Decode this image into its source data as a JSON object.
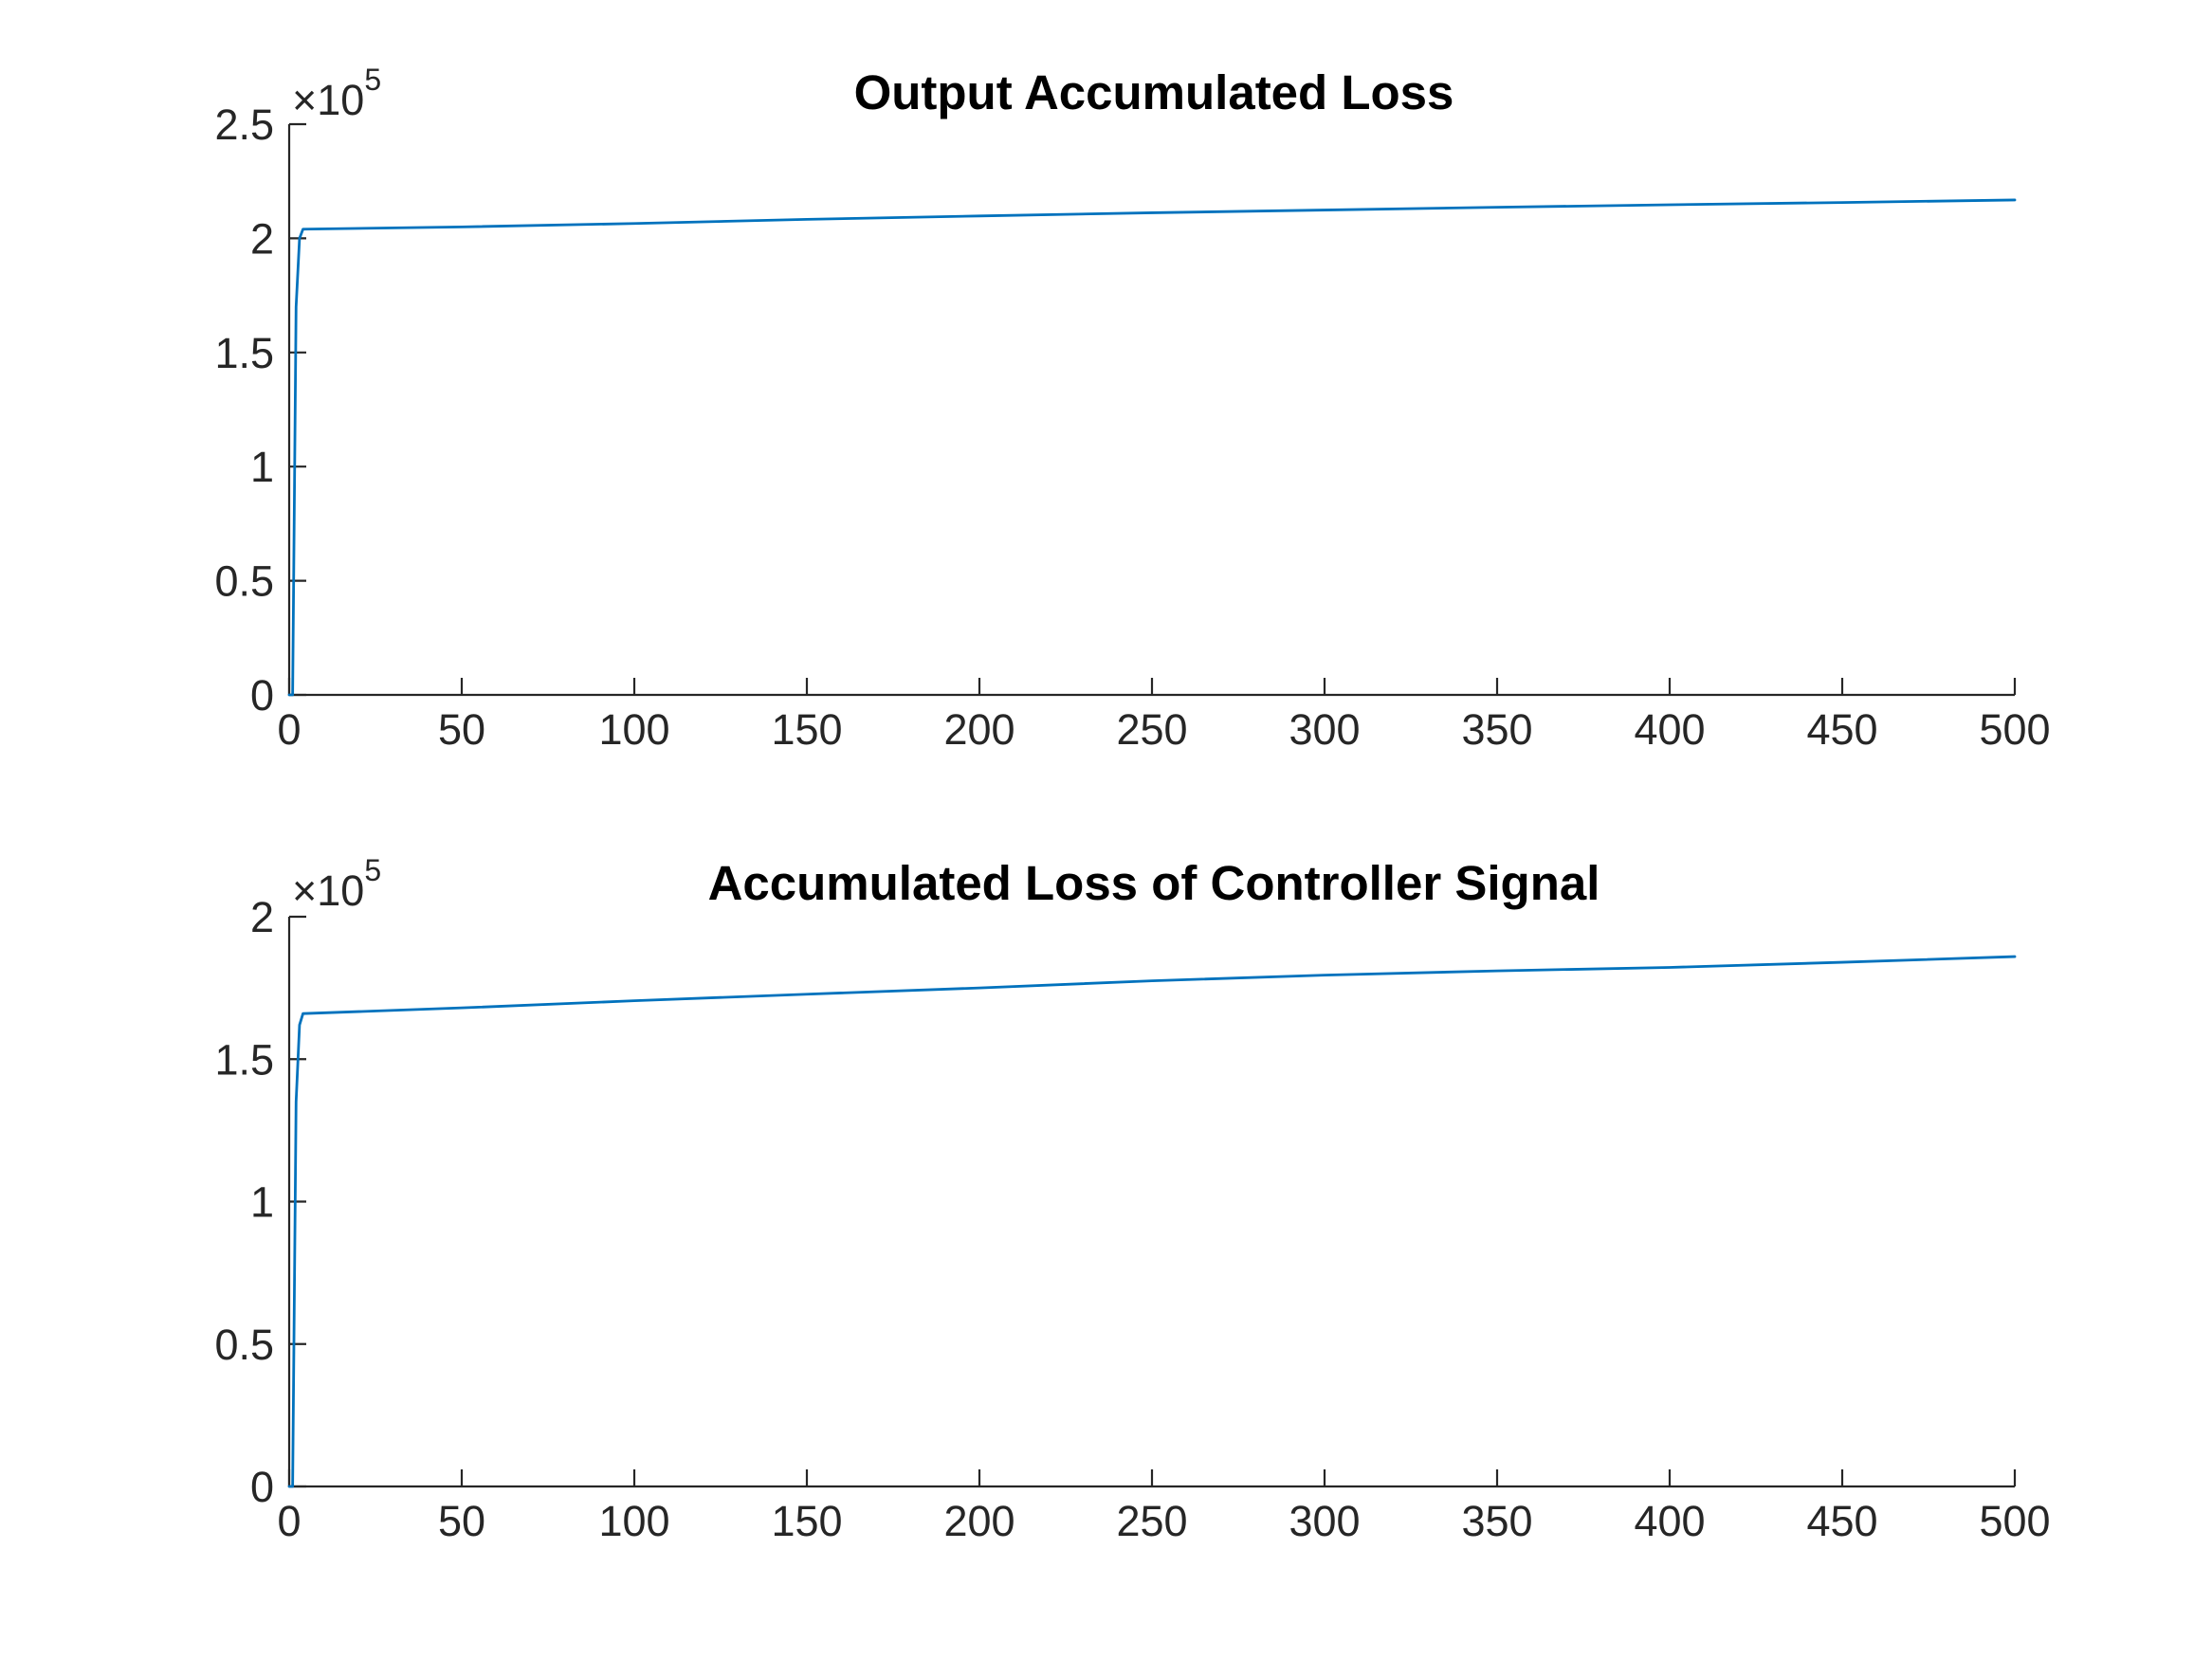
{
  "chart_data": [
    {
      "type": "line",
      "title": "Output Accumulated Loss",
      "xlabel": "",
      "ylabel": "",
      "xlim": [
        0,
        500
      ],
      "ylim": [
        0,
        250000
      ],
      "x_ticks": [
        0,
        50,
        100,
        150,
        200,
        250,
        300,
        350,
        400,
        450,
        500
      ],
      "x_tick_labels": [
        "0",
        "50",
        "100",
        "150",
        "200",
        "250",
        "300",
        "350",
        "400",
        "450",
        "500"
      ],
      "y_ticks": [
        0,
        50000,
        100000,
        150000,
        200000,
        250000
      ],
      "y_tick_labels": [
        "0",
        "0.5",
        "1",
        "1.5",
        "2",
        "2.5"
      ],
      "y_exponent": {
        "base_label": "×10",
        "power": "5"
      },
      "grid": false,
      "series": [
        {
          "color": "#0072BD",
          "x": [
            0,
            1,
            2,
            3,
            4,
            50,
            100,
            150,
            200,
            250,
            300,
            350,
            400,
            450,
            500
          ],
          "y": [
            0,
            0,
            170000,
            200000,
            204000,
            205000,
            206500,
            208300,
            209800,
            211200,
            212400,
            213600,
            214700,
            215700,
            216800
          ]
        }
      ]
    },
    {
      "type": "line",
      "title": "Accumulated Loss of Controller Signal",
      "xlabel": "",
      "ylabel": "",
      "xlim": [
        0,
        500
      ],
      "ylim": [
        0,
        200000
      ],
      "x_ticks": [
        0,
        50,
        100,
        150,
        200,
        250,
        300,
        350,
        400,
        450,
        500
      ],
      "x_tick_labels": [
        "0",
        "50",
        "100",
        "150",
        "200",
        "250",
        "300",
        "350",
        "400",
        "450",
        "500"
      ],
      "y_ticks": [
        0,
        50000,
        100000,
        150000,
        200000
      ],
      "y_tick_labels": [
        "0",
        "0.5",
        "1",
        "1.5",
        "2"
      ],
      "y_exponent": {
        "base_label": "×10",
        "power": "5"
      },
      "grid": false,
      "series": [
        {
          "color": "#0072BD",
          "x": [
            0,
            1,
            2,
            3,
            4,
            50,
            100,
            150,
            200,
            250,
            300,
            350,
            400,
            450,
            500
          ],
          "y": [
            0,
            0,
            135000,
            162000,
            166000,
            168000,
            170500,
            172800,
            175000,
            177500,
            179500,
            181000,
            182200,
            184000,
            186000
          ]
        }
      ]
    }
  ]
}
